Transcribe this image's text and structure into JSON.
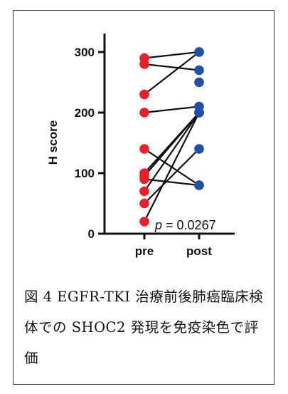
{
  "chart_data": {
    "type": "scatter",
    "subtype": "paired-dot-plot",
    "categories": [
      "pre",
      "post"
    ],
    "ylabel": "H score",
    "yticks": [
      0,
      100,
      200,
      300
    ],
    "ylim": [
      0,
      310
    ],
    "grid": false,
    "pairs": [
      {
        "pre": 290,
        "post": 300
      },
      {
        "pre": 280,
        "post": 270
      },
      {
        "pre": 230,
        "post": 300
      },
      {
        "pre": 200,
        "post": 210
      },
      {
        "pre": 140,
        "post": 80
      },
      {
        "pre": 100,
        "post": 200
      },
      {
        "pre": 95,
        "post": 200
      },
      {
        "pre": 90,
        "post": 80
      },
      {
        "pre": 70,
        "post": 200
      },
      {
        "pre": 50,
        "post": 140
      },
      {
        "pre": 20,
        "post": 200
      }
    ],
    "extra_post_points": [
      250
    ],
    "colors": {
      "pre": "#e8202a",
      "post": "#1f4fa8",
      "line": "#111111"
    },
    "annotation": {
      "p_symbol": "p",
      "p_value": " = 0.0267"
    }
  },
  "caption": "図 4 EGFR-TKI 治療前後肺癌臨床検体での SHOC2 発現を免疫染色で評価"
}
